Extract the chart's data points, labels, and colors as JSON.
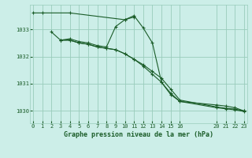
{
  "title": "Graphe pression niveau de la mer (hPa)",
  "bg_color": "#cceee8",
  "line_color": "#1a5c28",
  "grid_color": "#99ccbb",
  "fig_width": 3.2,
  "fig_height": 2.0,
  "dpi": 100,
  "xlim": [
    -0.3,
    23.3
  ],
  "ylim": [
    1029.55,
    1033.9
  ],
  "yticks": [
    1030,
    1031,
    1032,
    1033
  ],
  "xticks": [
    0,
    1,
    2,
    3,
    4,
    5,
    6,
    7,
    8,
    9,
    10,
    11,
    12,
    13,
    14,
    15,
    16,
    20,
    21,
    22,
    23
  ],
  "series1_x": [
    0,
    1,
    4,
    10,
    11
  ],
  "series1_y": [
    1033.6,
    1033.6,
    1033.6,
    1033.35,
    1033.45
  ],
  "series2_x": [
    2,
    3,
    4,
    5,
    6,
    7,
    8,
    9,
    10,
    11,
    12,
    13,
    14,
    15,
    16,
    20,
    21,
    22,
    23
  ],
  "series2_y": [
    1032.9,
    1032.6,
    1032.65,
    1032.55,
    1032.5,
    1032.4,
    1032.35,
    1033.1,
    1033.35,
    1033.5,
    1033.05,
    1032.5,
    1031.05,
    1030.65,
    1030.35,
    1030.22,
    1030.18,
    1030.12,
    1030.0
  ],
  "series3_x": [
    3,
    4,
    5,
    6,
    7,
    8,
    9,
    10,
    11,
    12,
    13,
    14,
    15,
    16,
    20,
    21,
    22,
    23
  ],
  "series3_y": [
    1032.6,
    1032.6,
    1032.5,
    1032.45,
    1032.35,
    1032.3,
    1032.25,
    1032.1,
    1031.9,
    1031.7,
    1031.45,
    1031.2,
    1030.8,
    1030.4,
    1030.15,
    1030.1,
    1030.07,
    1030.0
  ],
  "series4_x": [
    3,
    4,
    5,
    6,
    7,
    8,
    9,
    10,
    11,
    12,
    13,
    14,
    15,
    16,
    20,
    21,
    22,
    23
  ],
  "series4_y": [
    1032.6,
    1032.6,
    1032.5,
    1032.45,
    1032.35,
    1032.3,
    1032.25,
    1032.1,
    1031.9,
    1031.65,
    1031.35,
    1031.05,
    1030.6,
    1030.35,
    1030.12,
    1030.08,
    1030.04,
    1029.98
  ]
}
